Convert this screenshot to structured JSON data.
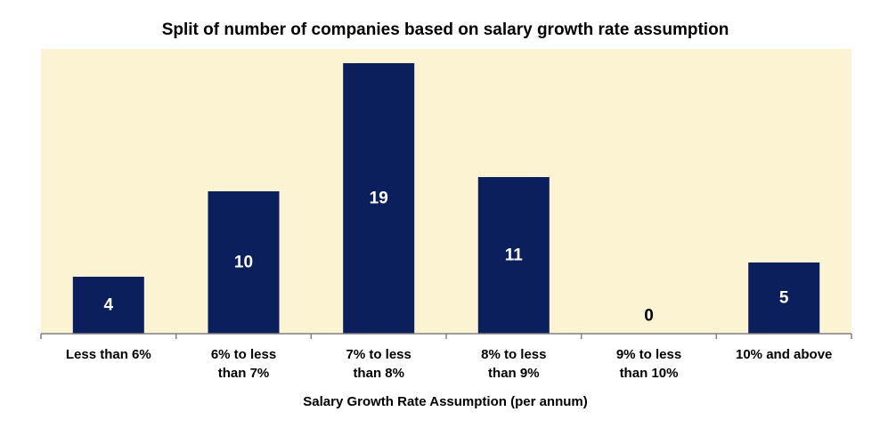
{
  "chart_data": {
    "type": "bar",
    "title": "Split of number of companies based on salary growth rate assumption",
    "xlabel": "Salary Growth Rate Assumption (per annum)",
    "ylabel": "",
    "categories": [
      "Less than 6%",
      "6% to less than 7%",
      "7% to less than 8%",
      "8% to less than 9%",
      "9% to less than 10%",
      "10% and above"
    ],
    "category_lines": [
      [
        "Less than 6%"
      ],
      [
        "6% to less",
        "than 7%"
      ],
      [
        "7% to less",
        "than 8%"
      ],
      [
        "8% to less",
        "than 9%"
      ],
      [
        "9% to less",
        "than 10%"
      ],
      [
        "10% and above"
      ]
    ],
    "values": [
      4,
      10,
      19,
      11,
      0,
      5
    ],
    "ylim": [
      0,
      20
    ],
    "grid": false,
    "legend": "none",
    "data_labels": "inside-bar",
    "colors": {
      "bar": "#0b1f5c",
      "plot_background": "#fbf3d1",
      "label_inside": "#ffffff",
      "label_outside": "#000000",
      "axis": "#7f7f7f",
      "text": "#000000"
    }
  }
}
